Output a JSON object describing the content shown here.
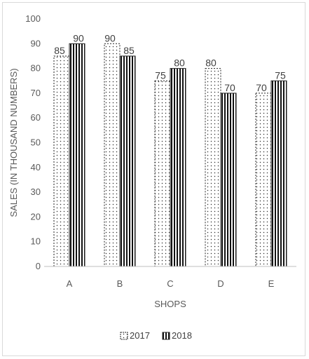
{
  "chart_data": {
    "type": "bar",
    "title": "",
    "xlabel": "SHOPS",
    "ylabel": "SALES (IN THOUSAND NUMBERS)",
    "categories": [
      "A",
      "B",
      "C",
      "D",
      "E"
    ],
    "ylim": [
      0,
      100
    ],
    "yticks": [
      0,
      10,
      20,
      30,
      40,
      50,
      60,
      70,
      80,
      90,
      100
    ],
    "grid": false,
    "legend_position": "bottom",
    "series": [
      {
        "name": "2017",
        "values": [
          85,
          90,
          75,
          80,
          70
        ],
        "pattern": "dotted",
        "color": "#ffffff"
      },
      {
        "name": "2018",
        "values": [
          90,
          85,
          80,
          70,
          75
        ],
        "pattern": "vertical-stripes",
        "color": "#000000"
      }
    ],
    "data_labels": true
  }
}
